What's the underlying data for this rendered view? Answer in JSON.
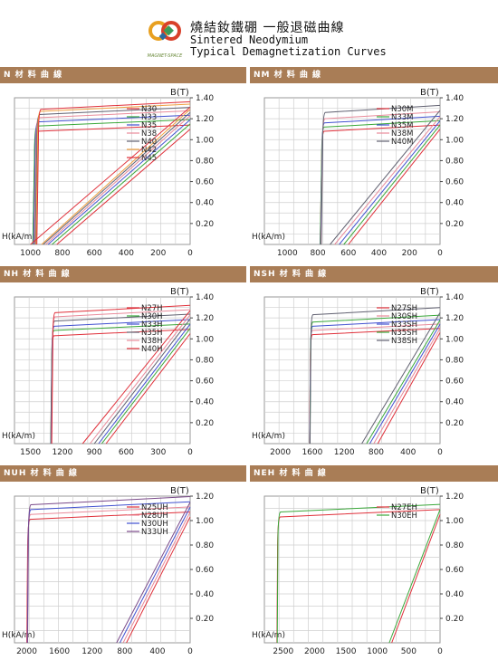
{
  "header": {
    "title_cn": "燒結釹鐵硼 一般退磁曲線",
    "title_en_1": "Sintered Neodymium",
    "title_en_2": "Typical Demagnetization Curves",
    "logo_text": "MAGNET-SPACE"
  },
  "colors": {
    "bar": "#a97d56",
    "grid": "#cfcfcf",
    "red": "#e0303a",
    "green": "#3aa83a",
    "blue": "#4050d0",
    "pink": "#e98a9a",
    "orange": "#f0a040",
    "purple": "#7a4a8a",
    "gray": "#606070"
  },
  "chart_data": [
    {
      "id": "N",
      "type": "line",
      "bar_label": "N 材 料 曲 線",
      "ylabel": "B(T)",
      "xlabel": "H(kA/m)",
      "xlim": [
        1100,
        0
      ],
      "ylim": [
        0,
        1.4
      ],
      "x_ticks": [
        "1000",
        "800",
        "600",
        "400",
        "200",
        "0"
      ],
      "x_tick_values": [
        1000,
        800,
        600,
        400,
        200,
        0
      ],
      "y_ticks": [
        "1.40",
        "1.20",
        "1.00",
        "0.80",
        "0.60",
        "0.40",
        "0.20"
      ],
      "y_tick_values": [
        1.4,
        1.2,
        1.0,
        0.8,
        0.6,
        0.4,
        0.2
      ],
      "legend": [
        "N30",
        "N33",
        "N35",
        "N38",
        "N40",
        "N42",
        "N45"
      ],
      "series": [
        {
          "name": "N30",
          "color": "#e0303a",
          "br": 1.1,
          "hcb": 835,
          "knee": 960,
          "slope": 1.05,
          "hcj": 975
        },
        {
          "name": "N33",
          "color": "#3aa83a",
          "br": 1.15,
          "hcb": 865,
          "knee": 960,
          "slope": 1.05,
          "hcj": 975
        },
        {
          "name": "N35",
          "color": "#4050d0",
          "br": 1.19,
          "hcb": 890,
          "knee": 955,
          "slope": 1.05,
          "hcj": 970
        },
        {
          "name": "N38",
          "color": "#e98a9a",
          "br": 1.23,
          "hcb": 905,
          "knee": 950,
          "slope": 1.05,
          "hcj": 965
        },
        {
          "name": "N40",
          "color": "#606070",
          "br": 1.26,
          "hcb": 920,
          "knee": 945,
          "slope": 1.05,
          "hcj": 960
        },
        {
          "name": "N42",
          "color": "#f0a040",
          "br": 1.29,
          "hcb": 930,
          "knee": 940,
          "slope": 1.05,
          "hcj": 955
        },
        {
          "name": "N45",
          "color": "#e0303a",
          "br": 1.31,
          "hcb": 1000,
          "knee": 935,
          "slope": 1.05,
          "hcj": 950
        }
      ]
    },
    {
      "id": "NM",
      "type": "line",
      "bar_label": "NM 材 料 曲 線",
      "ylabel": "B(T)",
      "xlabel": "H(kA/m)",
      "xlim": [
        1150,
        0
      ],
      "ylim": [
        0,
        1.4
      ],
      "x_ticks": [
        "1000",
        "800",
        "600",
        "400",
        "200",
        "0"
      ],
      "x_tick_values": [
        1000,
        800,
        600,
        400,
        200,
        0
      ],
      "y_ticks": [
        "1.40",
        "1.20",
        "1.00",
        "0.80",
        "0.60",
        "0.40",
        "0.20"
      ],
      "y_tick_values": [
        1.4,
        1.2,
        1.0,
        0.8,
        0.6,
        0.4,
        0.2
      ],
      "legend": [
        "N30M",
        "N33M",
        "N35M",
        "N38M",
        "N40M"
      ],
      "series": [
        {
          "name": "N30M",
          "color": "#e0303a",
          "br": 1.1,
          "hcb": 600,
          "knee": 760,
          "slope": 1.05,
          "hcj": 775
        },
        {
          "name": "N33M",
          "color": "#3aa83a",
          "br": 1.14,
          "hcb": 630,
          "knee": 760,
          "slope": 1.05,
          "hcj": 775
        },
        {
          "name": "N35M",
          "color": "#4050d0",
          "br": 1.18,
          "hcb": 660,
          "knee": 758,
          "slope": 1.05,
          "hcj": 772
        },
        {
          "name": "N38M",
          "color": "#e98a9a",
          "br": 1.22,
          "hcb": 690,
          "knee": 755,
          "slope": 1.05,
          "hcj": 770
        },
        {
          "name": "N40M",
          "color": "#606070",
          "br": 1.28,
          "hcb": 720,
          "knee": 752,
          "slope": 1.05,
          "hcj": 768
        }
      ]
    },
    {
      "id": "NH",
      "type": "line",
      "bar_label": "NH 材 料 曲 線",
      "ylabel": "B(T)",
      "xlabel": "H(kA/m)",
      "xlim": [
        1650,
        0
      ],
      "ylim": [
        0,
        1.4
      ],
      "x_ticks": [
        "1500",
        "1200",
        "900",
        "600",
        "300",
        "0"
      ],
      "x_tick_values": [
        1500,
        1200,
        900,
        600,
        300,
        0
      ],
      "y_ticks": [
        "1.40",
        "1.20",
        "1.00",
        "0.80",
        "0.60",
        "0.40",
        "0.20"
      ],
      "y_tick_values": [
        1.4,
        1.2,
        1.0,
        0.8,
        0.6,
        0.4,
        0.2
      ],
      "legend": [
        "N27H",
        "N30H",
        "N33H",
        "N35H",
        "N38H",
        "N40H"
      ],
      "series": [
        {
          "name": "N27H",
          "color": "#e0303a",
          "br": 1.05,
          "hcb": 790,
          "knee": 1280,
          "slope": 1.05,
          "hcj": 1300
        },
        {
          "name": "N30H",
          "color": "#3aa83a",
          "br": 1.1,
          "hcb": 830,
          "knee": 1280,
          "slope": 1.05,
          "hcj": 1300
        },
        {
          "name": "N33H",
          "color": "#4050d0",
          "br": 1.14,
          "hcb": 860,
          "knee": 1278,
          "slope": 1.05,
          "hcj": 1298
        },
        {
          "name": "N35H",
          "color": "#606070",
          "br": 1.19,
          "hcb": 900,
          "knee": 1275,
          "slope": 1.05,
          "hcj": 1295
        },
        {
          "name": "N38H",
          "color": "#e98a9a",
          "br": 1.23,
          "hcb": 940,
          "knee": 1272,
          "slope": 1.05,
          "hcj": 1292
        },
        {
          "name": "N40H",
          "color": "#e0303a",
          "br": 1.27,
          "hcb": 1010,
          "knee": 1270,
          "slope": 1.05,
          "hcj": 1290
        }
      ]
    },
    {
      "id": "NSH",
      "type": "line",
      "bar_label": "NSH 材 料 曲 線",
      "ylabel": "B(T)",
      "xlabel": "H(kA/m)",
      "xlim": [
        2200,
        0
      ],
      "ylim": [
        0,
        1.4
      ],
      "x_ticks": [
        "2000",
        "1600",
        "1200",
        "800",
        "400",
        "0"
      ],
      "x_tick_values": [
        2000,
        1600,
        1200,
        800,
        400,
        0
      ],
      "y_ticks": [
        "1.40",
        "1.20",
        "1.00",
        "0.80",
        "0.60",
        "0.40",
        "0.20"
      ],
      "y_tick_values": [
        1.4,
        1.2,
        1.0,
        0.8,
        0.6,
        0.4,
        0.2
      ],
      "legend": [
        "N27SH",
        "N30SH",
        "N33SH",
        "N35SH",
        "N38SH"
      ],
      "series": [
        {
          "name": "N27SH",
          "color": "#e0303a",
          "br": 1.06,
          "hcb": 780,
          "knee": 1600,
          "slope": 1.05,
          "hcj": 1625
        },
        {
          "name": "N30SH",
          "color": "#e98a9a",
          "br": 1.1,
          "hcb": 830,
          "knee": 1600,
          "slope": 1.05,
          "hcj": 1625
        },
        {
          "name": "N33SH",
          "color": "#4050d0",
          "br": 1.14,
          "hcb": 880,
          "knee": 1598,
          "slope": 1.05,
          "hcj": 1622
        },
        {
          "name": "N35SH",
          "color": "#3aa83a",
          "br": 1.18,
          "hcb": 920,
          "knee": 1596,
          "slope": 1.05,
          "hcj": 1620
        },
        {
          "name": "N38SH",
          "color": "#606070",
          "br": 1.25,
          "hcb": 980,
          "knee": 1594,
          "slope": 1.05,
          "hcj": 1618
        }
      ]
    },
    {
      "id": "NUH",
      "type": "line",
      "bar_label": "NUH 材 料 曲 線",
      "ylabel": "B(T)",
      "xlabel": "H(kA/m)",
      "xlim": [
        2150,
        0
      ],
      "ylim": [
        0,
        1.2
      ],
      "x_ticks": [
        "2000",
        "1600",
        "1200",
        "800",
        "400",
        "0"
      ],
      "x_tick_values": [
        2000,
        1600,
        1200,
        800,
        400,
        0
      ],
      "y_ticks": [
        "1.20",
        "1.00",
        "0.80",
        "0.60",
        "0.40",
        "0.20"
      ],
      "y_tick_values": [
        1.2,
        1.0,
        0.8,
        0.6,
        0.4,
        0.2
      ],
      "legend": [
        "N25UH",
        "N28UH",
        "N30UH",
        "N33UH"
      ],
      "series": [
        {
          "name": "N25UH",
          "color": "#e0303a",
          "br": 1.03,
          "hcb": 780,
          "knee": 1960,
          "slope": 1.05,
          "hcj": 1990
        },
        {
          "name": "N28UH",
          "color": "#e98a9a",
          "br": 1.07,
          "hcb": 820,
          "knee": 1955,
          "slope": 1.05,
          "hcj": 1985
        },
        {
          "name": "N30UH",
          "color": "#4050d0",
          "br": 1.11,
          "hcb": 860,
          "knee": 1952,
          "slope": 1.05,
          "hcj": 1982
        },
        {
          "name": "N33UH",
          "color": "#7a4a8a",
          "br": 1.15,
          "hcb": 900,
          "knee": 1950,
          "slope": 1.05,
          "hcj": 1980
        }
      ]
    },
    {
      "id": "NEH",
      "type": "line",
      "bar_label": "NEH 材 料 曲 線",
      "ylabel": "B(T)",
      "xlabel": "H(kA/m)",
      "xlim": [
        2800,
        0
      ],
      "ylim": [
        0,
        1.2
      ],
      "x_ticks": [
        "2500",
        "2000",
        "1500",
        "1000",
        "500",
        "0"
      ],
      "x_tick_values": [
        2500,
        2000,
        1500,
        1000,
        500,
        0
      ],
      "y_ticks": [
        "1.20",
        "1.00",
        "0.80",
        "0.60",
        "0.40",
        "0.20"
      ],
      "y_tick_values": [
        1.2,
        1.0,
        0.8,
        0.6,
        0.4,
        0.2
      ],
      "legend": [
        "N27EH",
        "N30EH"
      ],
      "series": [
        {
          "name": "N27EH",
          "color": "#e0303a",
          "br": 1.05,
          "hcb": 770,
          "knee": 2550,
          "slope": 1.05,
          "hcj": 2590
        },
        {
          "name": "N30EH",
          "color": "#3aa83a",
          "br": 1.09,
          "hcb": 810,
          "knee": 2545,
          "slope": 1.05,
          "hcj": 2585
        }
      ]
    }
  ]
}
